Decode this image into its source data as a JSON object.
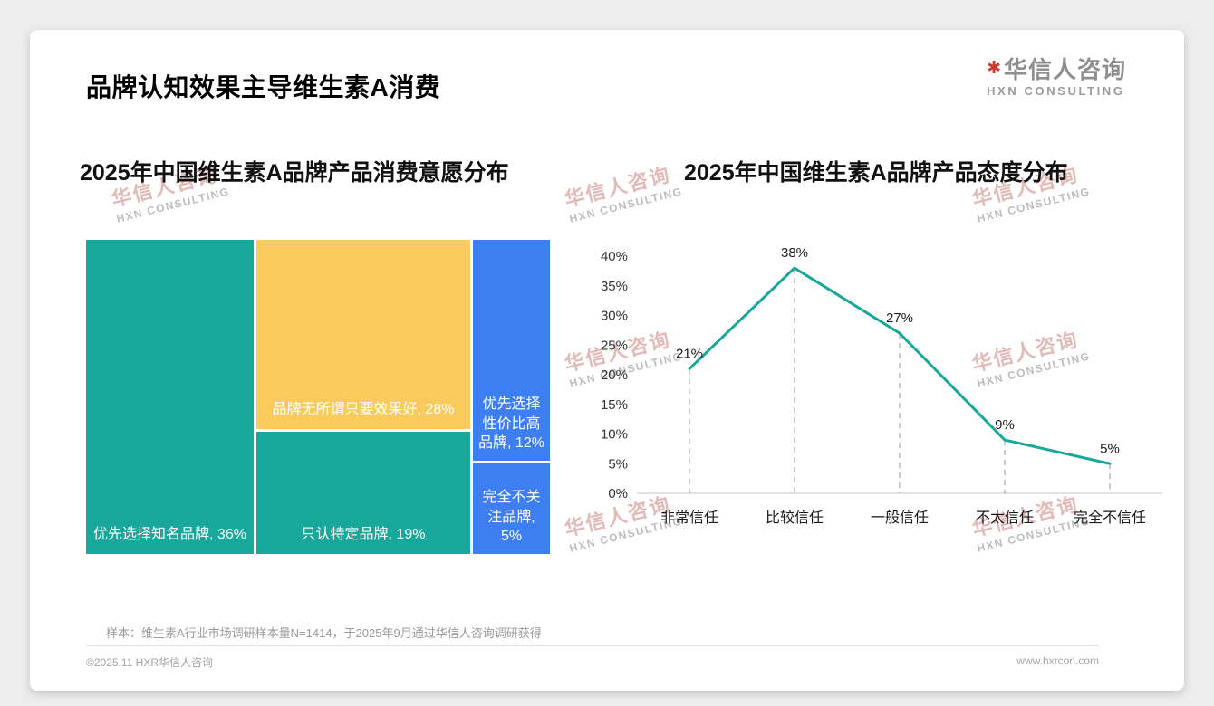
{
  "page": {
    "title": "品牌认知效果主导维生素A消费",
    "sample_note": "样本：维生素A行业市场调研样本量N=1414，于2025年9月通过华信人咨询调研获得",
    "footer_left": "©2025.11 HXR华信人咨询",
    "footer_right": "www.hxrcon.com"
  },
  "logo": {
    "mark": "✱",
    "name_cn": "华信人咨询",
    "name_en": "HXN CONSULTING"
  },
  "watermark": {
    "line1": "华信人咨询",
    "line2": "HXN CONSULTING"
  },
  "colors": {
    "teal": "#17A89B",
    "yellow": "#F9CB5C",
    "blue": "#3D7EF2",
    "logo_red": "#CF3A2E"
  },
  "chart_data": [
    {
      "type": "treemap",
      "title": "2025年中国维生素A品牌产品消费意愿分布",
      "segments": [
        {
          "label": "优先选择知名品牌",
          "value": 36,
          "color": "#17A89B",
          "display": "优先选择知名品牌, 36%"
        },
        {
          "label": "品牌无所谓只要效果好",
          "value": 28,
          "color": "#F9CB5C",
          "display": "品牌无所谓只要效果好, 28%"
        },
        {
          "label": "只认特定品牌",
          "value": 19,
          "color": "#17A89B",
          "display": "只认特定品牌, 19%"
        },
        {
          "label": "优先选择性价比高品牌",
          "value": 12,
          "color": "#3D7EF2",
          "display": "优先选择性价比高品牌, 12%"
        },
        {
          "label": "完全不关注品牌",
          "value": 5,
          "color": "#3D7EF2",
          "display": "完全不关注品牌, 5%"
        }
      ]
    },
    {
      "type": "line",
      "title": "2025年中国维生素A品牌产品态度分布",
      "categories": [
        "非常信任",
        "比较信任",
        "一般信任",
        "不太信任",
        "完全不信任"
      ],
      "values": [
        21,
        38,
        27,
        9,
        5
      ],
      "ylim": [
        0,
        40
      ],
      "ytick_step": 5,
      "line_color": "#17A89B",
      "grid": "dashed-drop-lines",
      "legend": "none"
    }
  ]
}
